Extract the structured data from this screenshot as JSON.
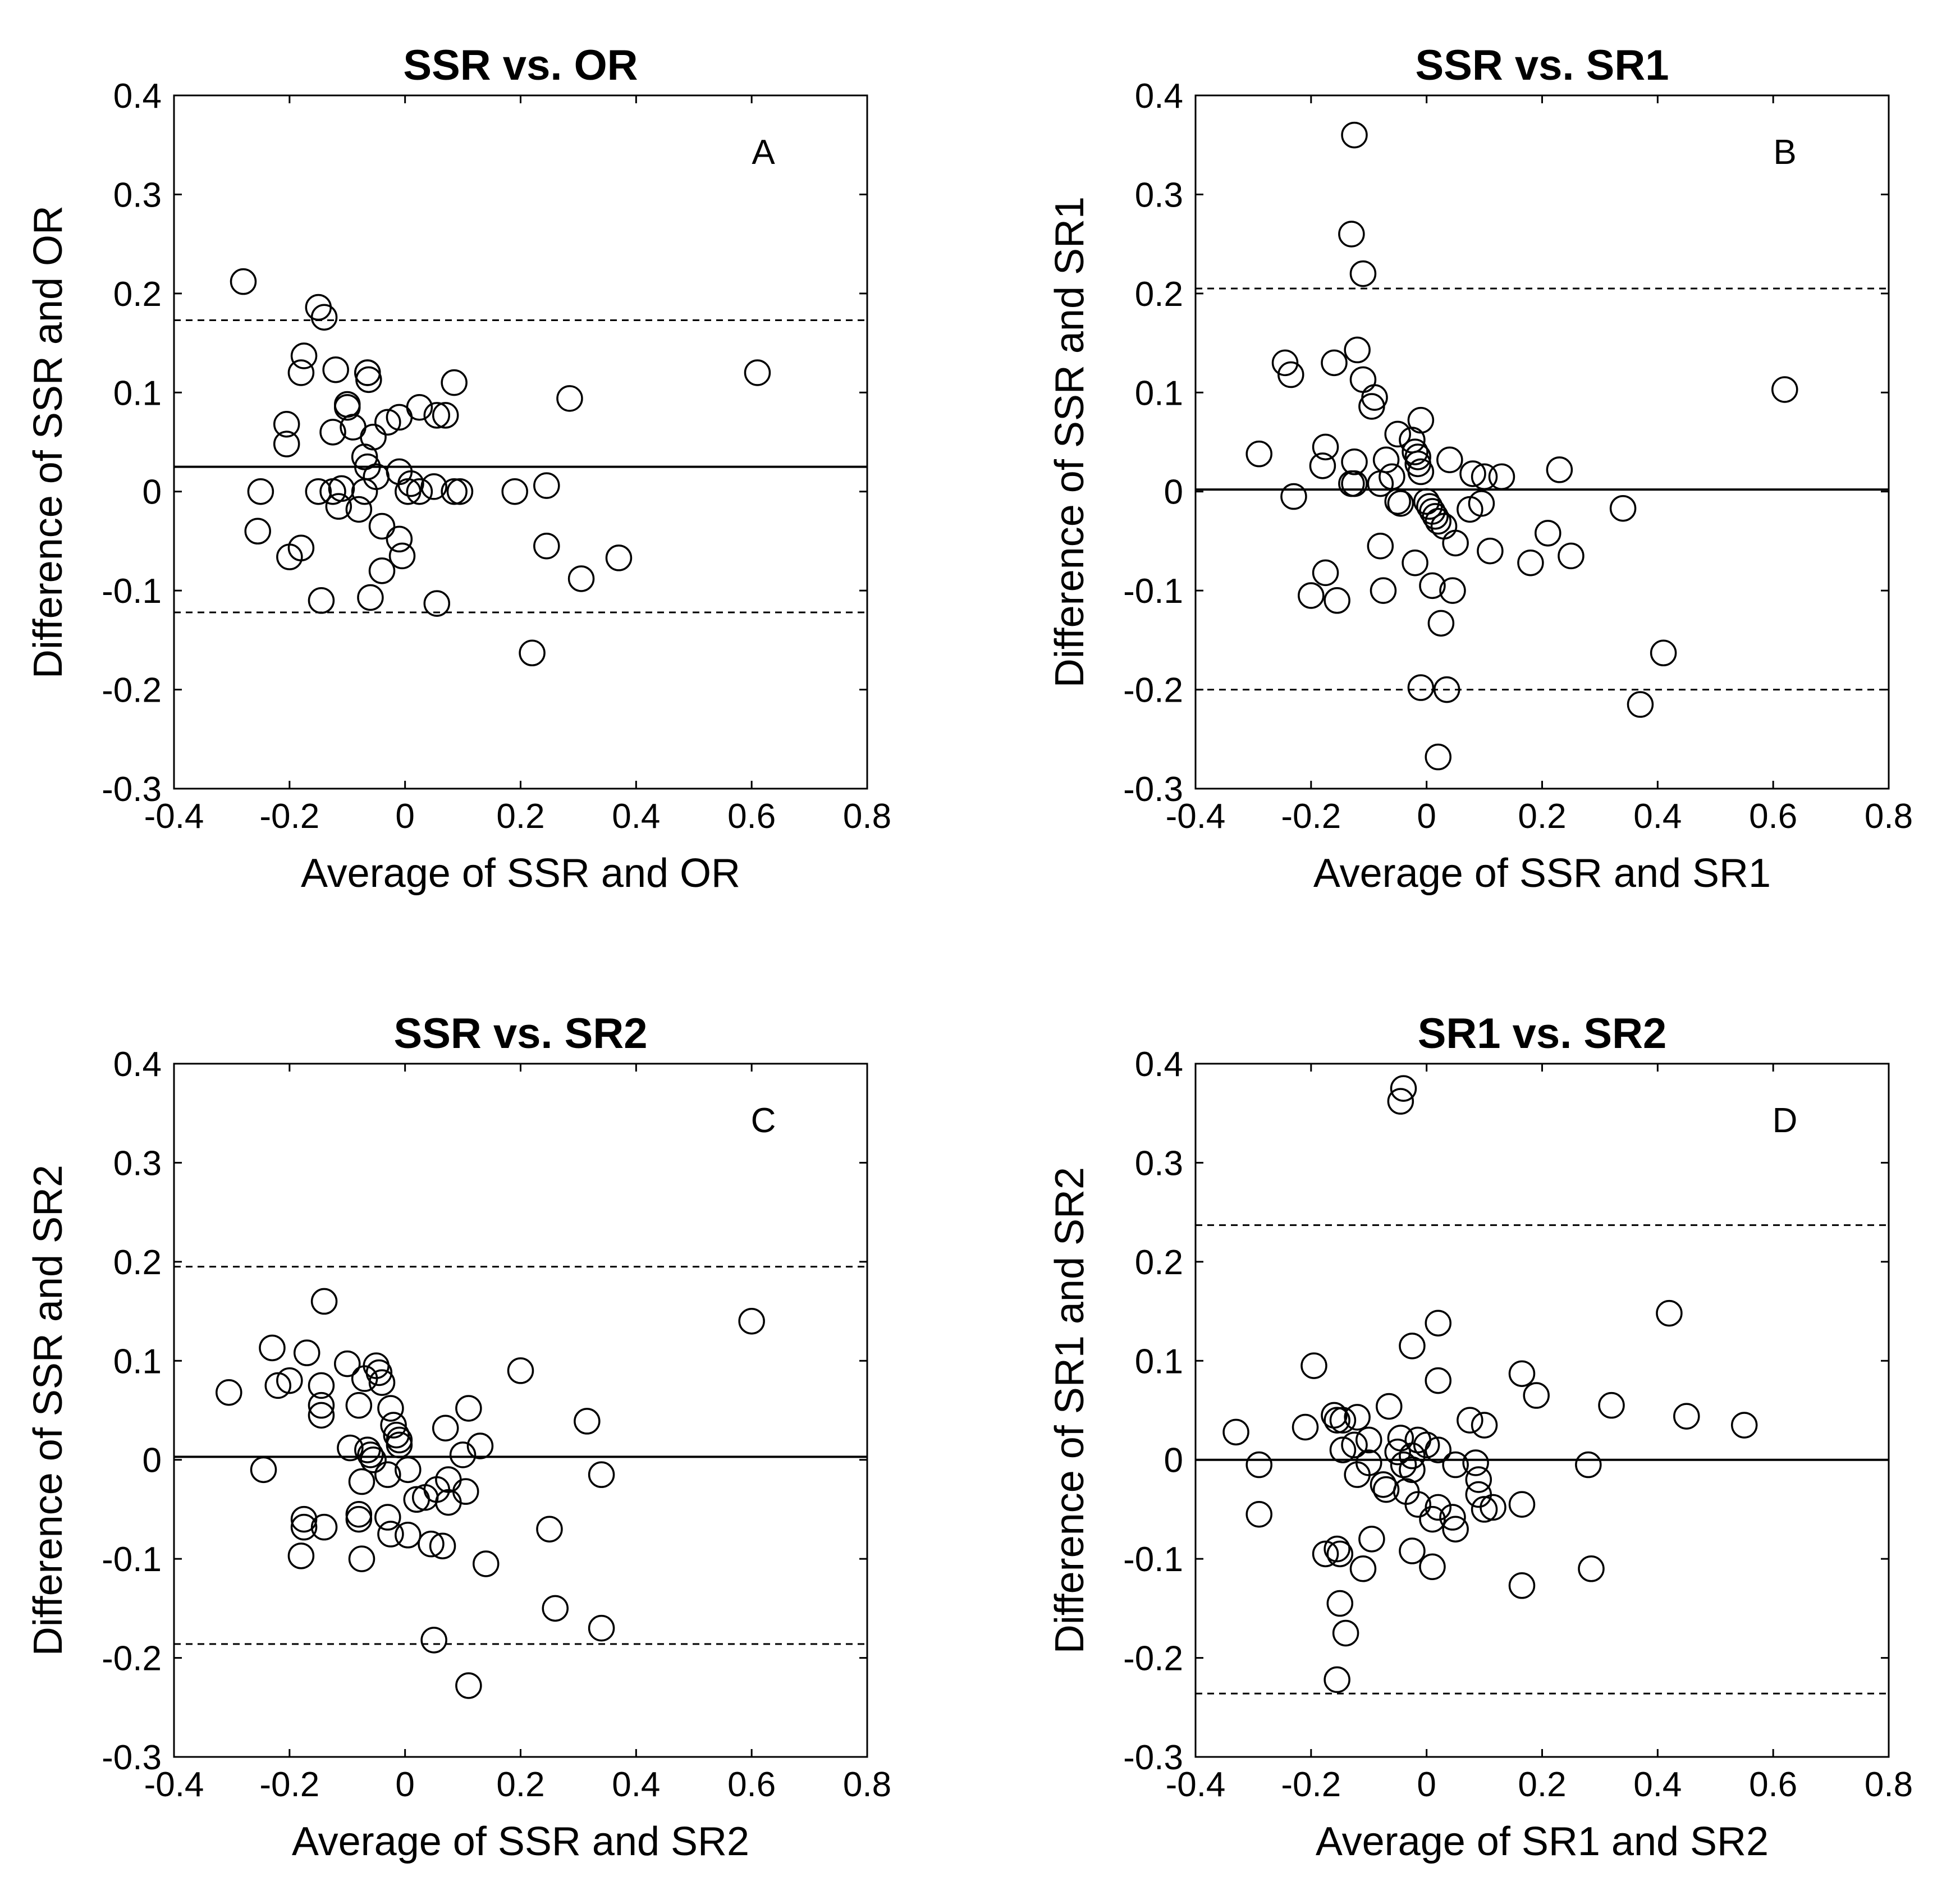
{
  "chart_data": [
    {
      "type": "scatter",
      "title": "SSR vs. OR",
      "panel_letter": "A",
      "xlabel": "Average of SSR and OR",
      "ylabel": "Difference of SSR and OR",
      "xlim": [
        -0.4,
        0.8
      ],
      "ylim": [
        -0.3,
        0.4
      ],
      "x_ticks": [
        "-0.4",
        "-0.2",
        "0",
        "0.2",
        "0.4",
        "0.6",
        "0.8"
      ],
      "y_ticks": [
        "-0.3",
        "-0.2",
        "-0.1",
        "0",
        "0.1",
        "0.2",
        "0.3",
        "0.4"
      ],
      "mean_line": 0.025,
      "limits_of_agreement": [
        0.173,
        -0.122
      ],
      "grid": false,
      "marker": "open-circle",
      "points": [
        [
          -0.28,
          0.212
        ],
        [
          -0.15,
          0.186
        ],
        [
          -0.14,
          0.176
        ],
        [
          -0.175,
          0.137
        ],
        [
          -0.18,
          0.12
        ],
        [
          -0.12,
          0.123
        ],
        [
          -0.065,
          0.12
        ],
        [
          -0.063,
          0.113
        ],
        [
          -0.065,
          0.12
        ],
        [
          -0.1,
          0.088
        ],
        [
          -0.1,
          0.085
        ],
        [
          0.085,
          0.11
        ],
        [
          -0.205,
          0.068
        ],
        [
          -0.205,
          0.048
        ],
        [
          -0.09,
          0.065
        ],
        [
          -0.125,
          0.06
        ],
        [
          -0.03,
          0.07
        ],
        [
          -0.01,
          0.075
        ],
        [
          0.025,
          0.085
        ],
        [
          0.055,
          0.077
        ],
        [
          0.07,
          0.077
        ],
        [
          0.285,
          0.094
        ],
        [
          0.61,
          0.12
        ],
        [
          -0.07,
          0.035
        ],
        [
          -0.055,
          0.055
        ],
        [
          -0.065,
          0.025
        ],
        [
          -0.05,
          0.015
        ],
        [
          -0.01,
          0.02
        ],
        [
          0.01,
          0.008
        ],
        [
          -0.25,
          0.0
        ],
        [
          -0.15,
          0.0
        ],
        [
          -0.125,
          0.0
        ],
        [
          -0.11,
          0.003
        ],
        [
          -0.07,
          0.0
        ],
        [
          0.005,
          0.0
        ],
        [
          0.025,
          0.0
        ],
        [
          0.05,
          0.005
        ],
        [
          0.085,
          0.0
        ],
        [
          0.095,
          0.0
        ],
        [
          0.19,
          0.0
        ],
        [
          0.245,
          0.006
        ],
        [
          -0.255,
          -0.04
        ],
        [
          -0.18,
          -0.057
        ],
        [
          -0.2,
          -0.066
        ],
        [
          -0.115,
          -0.015
        ],
        [
          -0.08,
          -0.018
        ],
        [
          -0.04,
          -0.035
        ],
        [
          -0.01,
          -0.048
        ],
        [
          -0.005,
          -0.065
        ],
        [
          -0.04,
          -0.08
        ],
        [
          0.245,
          -0.055
        ],
        [
          0.37,
          -0.067
        ],
        [
          0.305,
          -0.088
        ],
        [
          -0.145,
          -0.11
        ],
        [
          -0.06,
          -0.107
        ],
        [
          0.055,
          -0.113
        ],
        [
          0.22,
          -0.163
        ]
      ]
    },
    {
      "type": "scatter",
      "title": "SSR vs. SR1",
      "panel_letter": "B",
      "xlabel": "Average of SSR and SR1",
      "ylabel": "Difference of SSR and SR1",
      "xlim": [
        -0.4,
        0.8
      ],
      "ylim": [
        -0.3,
        0.4
      ],
      "x_ticks": [
        "-0.4",
        "-0.2",
        "0",
        "0.2",
        "0.4",
        "0.6",
        "0.8"
      ],
      "y_ticks": [
        "-0.3",
        "-0.2",
        "-0.1",
        "0",
        "0.1",
        "0.2",
        "0.3",
        "0.4"
      ],
      "mean_line": 0.002,
      "limits_of_agreement": [
        0.205,
        -0.2
      ],
      "grid": false,
      "marker": "open-circle",
      "points": [
        [
          -0.125,
          0.36
        ],
        [
          -0.13,
          0.26
        ],
        [
          -0.11,
          0.22
        ],
        [
          -0.245,
          0.13
        ],
        [
          -0.235,
          0.118
        ],
        [
          -0.16,
          0.13
        ],
        [
          -0.12,
          0.143
        ],
        [
          -0.11,
          0.113
        ],
        [
          -0.09,
          0.095
        ],
        [
          -0.095,
          0.086
        ],
        [
          -0.01,
          0.072
        ],
        [
          0.62,
          0.103
        ],
        [
          -0.29,
          0.038
        ],
        [
          -0.175,
          0.045
        ],
        [
          -0.18,
          0.026
        ],
        [
          -0.125,
          0.03
        ],
        [
          -0.13,
          0.008
        ],
        [
          -0.125,
          0.008
        ],
        [
          -0.05,
          0.058
        ],
        [
          -0.025,
          0.052
        ],
        [
          -0.02,
          0.04
        ],
        [
          -0.015,
          0.035
        ],
        [
          -0.015,
          0.028
        ],
        [
          -0.01,
          0.02
        ],
        [
          -0.07,
          0.032
        ],
        [
          -0.06,
          0.015
        ],
        [
          -0.08,
          0.008
        ],
        [
          -0.05,
          -0.01
        ],
        [
          -0.045,
          -0.012
        ],
        [
          0.04,
          0.032
        ],
        [
          0.08,
          0.018
        ],
        [
          0.1,
          0.015
        ],
        [
          0.13,
          0.015
        ],
        [
          0.23,
          0.022
        ],
        [
          -0.23,
          -0.005
        ],
        [
          0.0,
          -0.01
        ],
        [
          0.005,
          -0.015
        ],
        [
          0.01,
          -0.02
        ],
        [
          0.015,
          -0.025
        ],
        [
          0.02,
          -0.03
        ],
        [
          0.03,
          -0.035
        ],
        [
          0.075,
          -0.018
        ],
        [
          0.095,
          -0.012
        ],
        [
          0.05,
          -0.052
        ],
        [
          -0.08,
          -0.055
        ],
        [
          -0.02,
          -0.072
        ],
        [
          0.11,
          -0.06
        ],
        [
          0.18,
          -0.072
        ],
        [
          0.21,
          -0.042
        ],
        [
          0.25,
          -0.065
        ],
        [
          0.34,
          -0.017
        ],
        [
          -0.2,
          -0.105
        ],
        [
          -0.175,
          -0.082
        ],
        [
          -0.155,
          -0.11
        ],
        [
          -0.075,
          -0.1
        ],
        [
          0.01,
          -0.095
        ],
        [
          0.045,
          -0.1
        ],
        [
          0.025,
          -0.133
        ],
        [
          -0.01,
          -0.198
        ],
        [
          0.035,
          -0.2
        ],
        [
          0.02,
          -0.268
        ],
        [
          0.37,
          -0.215
        ],
        [
          0.41,
          -0.163
        ]
      ]
    },
    {
      "type": "scatter",
      "title": "SSR vs. SR2",
      "panel_letter": "C",
      "xlabel": "Average of SSR and SR2",
      "ylabel": "Difference of SSR and SR2",
      "xlim": [
        -0.4,
        0.8
      ],
      "ylim": [
        -0.3,
        0.4
      ],
      "x_ticks": [
        "-0.4",
        "-0.2",
        "0",
        "0.2",
        "0.4",
        "0.6",
        "0.8"
      ],
      "y_ticks": [
        "-0.3",
        "-0.2",
        "-0.1",
        "0",
        "0.1",
        "0.2",
        "0.3",
        "0.4"
      ],
      "mean_line": 0.003,
      "limits_of_agreement": [
        0.195,
        -0.186
      ],
      "grid": false,
      "marker": "open-circle",
      "points": [
        [
          -0.14,
          0.16
        ],
        [
          -0.23,
          0.113
        ],
        [
          -0.17,
          0.108
        ],
        [
          -0.1,
          0.097
        ],
        [
          -0.05,
          0.095
        ],
        [
          -0.045,
          0.088
        ],
        [
          -0.07,
          0.082
        ],
        [
          -0.04,
          0.078
        ],
        [
          -0.22,
          0.075
        ],
        [
          -0.2,
          0.08
        ],
        [
          -0.145,
          0.075
        ],
        [
          -0.305,
          0.068
        ],
        [
          -0.08,
          0.055
        ],
        [
          -0.145,
          0.055
        ],
        [
          -0.145,
          0.045
        ],
        [
          -0.025,
          0.052
        ],
        [
          -0.02,
          0.035
        ],
        [
          -0.015,
          0.025
        ],
        [
          -0.01,
          0.02
        ],
        [
          0.07,
          0.032
        ],
        [
          0.11,
          0.052
        ],
        [
          0.2,
          0.09
        ],
        [
          0.315,
          0.039
        ],
        [
          0.6,
          0.14
        ],
        [
          -0.095,
          0.012
        ],
        [
          -0.065,
          0.01
        ],
        [
          -0.06,
          0.005
        ],
        [
          -0.055,
          0.0
        ],
        [
          -0.01,
          0.015
        ],
        [
          0.13,
          0.014
        ],
        [
          0.1,
          0.005
        ],
        [
          -0.245,
          -0.01
        ],
        [
          -0.075,
          -0.022
        ],
        [
          -0.03,
          -0.015
        ],
        [
          0.005,
          -0.01
        ],
        [
          0.02,
          -0.04
        ],
        [
          0.035,
          -0.038
        ],
        [
          0.055,
          -0.03
        ],
        [
          0.075,
          -0.02
        ],
        [
          0.075,
          -0.043
        ],
        [
          0.105,
          -0.032
        ],
        [
          -0.175,
          -0.06
        ],
        [
          -0.175,
          -0.068
        ],
        [
          -0.14,
          -0.068
        ],
        [
          -0.08,
          -0.055
        ],
        [
          -0.08,
          -0.06
        ],
        [
          -0.03,
          -0.058
        ],
        [
          -0.025,
          -0.075
        ],
        [
          0.005,
          -0.076
        ],
        [
          0.045,
          -0.085
        ],
        [
          0.065,
          -0.087
        ],
        [
          -0.18,
          -0.097
        ],
        [
          -0.075,
          -0.1
        ],
        [
          0.14,
          -0.105
        ],
        [
          0.25,
          -0.07
        ],
        [
          0.34,
          -0.015
        ],
        [
          0.26,
          -0.15
        ],
        [
          0.34,
          -0.17
        ],
        [
          0.05,
          -0.182
        ],
        [
          0.11,
          -0.228
        ]
      ]
    },
    {
      "type": "scatter",
      "title": "SR1 vs. SR2",
      "panel_letter": "D",
      "xlabel": "Average of SR1 and SR2",
      "ylabel": "Difference of SR1 and SR2",
      "xlim": [
        -0.4,
        0.8
      ],
      "ylim": [
        -0.3,
        0.4
      ],
      "x_ticks": [
        "-0.4",
        "-0.2",
        "0",
        "0.2",
        "0.4",
        "0.6",
        "0.8"
      ],
      "y_ticks": [
        "-0.3",
        "-0.2",
        "-0.1",
        "0",
        "0.1",
        "0.2",
        "0.3",
        "0.4"
      ],
      "mean_line": 0.0,
      "limits_of_agreement": [
        0.237,
        -0.236
      ],
      "grid": false,
      "marker": "open-circle",
      "points": [
        [
          -0.04,
          0.375
        ],
        [
          -0.045,
          0.362
        ],
        [
          0.42,
          0.148
        ],
        [
          0.02,
          0.138
        ],
        [
          -0.025,
          0.115
        ],
        [
          -0.195,
          0.095
        ],
        [
          0.165,
          0.087
        ],
        [
          0.19,
          0.065
        ],
        [
          0.02,
          0.08
        ],
        [
          -0.33,
          0.028
        ],
        [
          -0.21,
          0.033
        ],
        [
          -0.16,
          0.045
        ],
        [
          -0.155,
          0.04
        ],
        [
          -0.145,
          0.04
        ],
        [
          -0.12,
          0.043
        ],
        [
          -0.065,
          0.054
        ],
        [
          0.075,
          0.04
        ],
        [
          0.1,
          0.035
        ],
        [
          0.32,
          0.055
        ],
        [
          0.45,
          0.044
        ],
        [
          0.55,
          0.035
        ],
        [
          -0.1,
          0.02
        ],
        [
          -0.045,
          0.022
        ],
        [
          -0.015,
          0.02
        ],
        [
          0.0,
          0.015
        ],
        [
          0.02,
          0.01
        ],
        [
          -0.145,
          0.01
        ],
        [
          -0.125,
          0.015
        ],
        [
          -0.05,
          0.008
        ],
        [
          -0.025,
          0.004
        ],
        [
          -0.29,
          -0.005
        ],
        [
          -0.04,
          -0.005
        ],
        [
          -0.025,
          -0.01
        ],
        [
          0.05,
          -0.005
        ],
        [
          0.085,
          -0.003
        ],
        [
          0.28,
          -0.005
        ],
        [
          -0.12,
          -0.015
        ],
        [
          -0.1,
          -0.003
        ],
        [
          -0.075,
          -0.025
        ],
        [
          -0.07,
          -0.03
        ],
        [
          -0.035,
          -0.032
        ],
        [
          0.09,
          -0.02
        ],
        [
          0.09,
          -0.035
        ],
        [
          -0.015,
          -0.045
        ],
        [
          0.02,
          -0.048
        ],
        [
          0.045,
          -0.058
        ],
        [
          0.05,
          -0.07
        ],
        [
          0.01,
          -0.06
        ],
        [
          0.1,
          -0.05
        ],
        [
          0.115,
          -0.048
        ],
        [
          0.165,
          -0.045
        ],
        [
          -0.29,
          -0.055
        ],
        [
          -0.175,
          -0.095
        ],
        [
          -0.155,
          -0.09
        ],
        [
          -0.15,
          -0.095
        ],
        [
          -0.095,
          -0.08
        ],
        [
          -0.11,
          -0.11
        ],
        [
          -0.025,
          -0.092
        ],
        [
          0.01,
          -0.108
        ],
        [
          0.285,
          -0.11
        ],
        [
          0.165,
          -0.127
        ],
        [
          -0.15,
          -0.145
        ],
        [
          -0.14,
          -0.175
        ],
        [
          -0.155,
          -0.222
        ]
      ]
    }
  ]
}
